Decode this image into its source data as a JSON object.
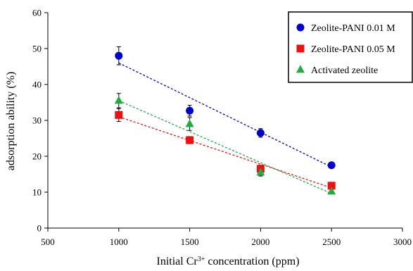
{
  "chart_data": {
    "type": "scatter",
    "title": "",
    "xlabel_parts": {
      "pre": "Initial Cr",
      "sup": "3+",
      "post": " concentration (ppm)"
    },
    "ylabel": "adsorption ability (%)",
    "xlim": [
      500,
      3000
    ],
    "ylim": [
      0,
      60
    ],
    "x_ticks": [
      500,
      1000,
      1500,
      2000,
      2500,
      3000
    ],
    "y_ticks": [
      0,
      10,
      20,
      30,
      40,
      50,
      60
    ],
    "grid": false,
    "legend_position": "top-right",
    "series": [
      {
        "name": "Zeolite-PANI 0.01 M",
        "marker": "circle",
        "color": "#0000cc",
        "x": [
          1000,
          1500,
          2000,
          2500
        ],
        "y": [
          48.0,
          32.7,
          26.5,
          17.5
        ],
        "error": [
          2.5,
          1.5,
          1.2,
          0.8
        ],
        "trend": [
          46.0,
          17.0
        ]
      },
      {
        "name": "Zeolite-PANI 0.05 M",
        "marker": "square",
        "color": "#ee1111",
        "x": [
          1000,
          1500,
          2000,
          2500
        ],
        "y": [
          31.5,
          24.5,
          16.5,
          11.8
        ],
        "error": [
          1.8,
          1.0,
          1.0,
          0.6
        ],
        "trend": [
          31.0,
          11.2
        ]
      },
      {
        "name": "Activated zeolite",
        "marker": "triangle",
        "color": "#22aa44",
        "x": [
          1000,
          1500,
          2000,
          2500
        ],
        "y": [
          35.5,
          29.0,
          15.5,
          10.2
        ],
        "error": [
          2.0,
          1.8,
          1.0,
          0.6
        ],
        "trend": [
          35.5,
          9.6
        ]
      }
    ]
  }
}
